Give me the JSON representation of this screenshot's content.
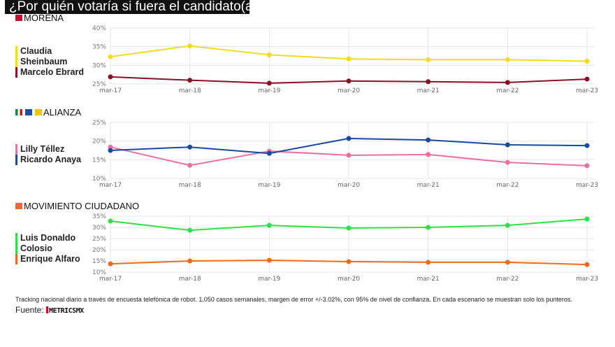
{
  "title": "¿Por quién votaría si fuera el candidato(a) de... ?",
  "note": "Tracking nacional diario a través de encuesta telefónica de robot. 1,050 casos semanales, margen de error +/-3.02%, con 95% de nivel de confianza. En cada escenario se muestran solo los punteros.",
  "source_label": "Fuente:",
  "source_brand": "METRICSMX",
  "chart_data": [
    {
      "type": "line",
      "title": "MORENA",
      "categories": [
        "mar-17",
        "mar-18",
        "mar-19",
        "mar-20",
        "mar-21",
        "mar-22",
        "mar-23"
      ],
      "ylim": [
        25,
        40
      ],
      "yticks": [
        25,
        30,
        35,
        40
      ],
      "ytick_labels": [
        "25%",
        "30%",
        "35%",
        "40%"
      ],
      "grid": true,
      "series": [
        {
          "name": "Claudia Sheinbaum",
          "legend_lines": [
            "Claudia",
            "Sheinbaum"
          ],
          "color": "#f2dc1e",
          "values": [
            32.3,
            35.2,
            32.8,
            31.7,
            31.5,
            31.5,
            31.1
          ]
        },
        {
          "name": "Marcelo Ebrard",
          "legend_lines": [
            "Marcelo Ebrard"
          ],
          "color": "#8a1028",
          "values": [
            26.9,
            26.0,
            25.2,
            25.8,
            25.6,
            25.4,
            26.3
          ]
        }
      ]
    },
    {
      "type": "line",
      "title": "ALIANZA",
      "categories": [
        "mar-17",
        "mar-18",
        "mar-19",
        "mar-20",
        "mar-21",
        "mar-22",
        "mar-23"
      ],
      "ylim": [
        10,
        25
      ],
      "yticks": [
        10,
        15,
        20,
        25
      ],
      "ytick_labels": [
        "10%",
        "15%",
        "20%",
        "25%"
      ],
      "grid": true,
      "series": [
        {
          "name": "Lilly Téllez",
          "legend_lines": [
            "Lilly Téllez"
          ],
          "color": "#e8719f",
          "values": [
            18.4,
            13.5,
            17.3,
            16.2,
            16.4,
            14.3,
            13.4
          ]
        },
        {
          "name": "Ricardo Anaya",
          "legend_lines": [
            "Ricardo Anaya"
          ],
          "color": "#1a4a9e",
          "values": [
            17.5,
            18.4,
            16.7,
            20.7,
            20.3,
            19.0,
            18.8
          ]
        }
      ]
    },
    {
      "type": "line",
      "title": "MOVIMIENTO CIUDADANO",
      "categories": [
        "mar-17",
        "mar-18",
        "mar-19",
        "mar-20",
        "mar-21",
        "mar-22",
        "mar-23"
      ],
      "ylim": [
        10,
        35
      ],
      "yticks": [
        10,
        15,
        20,
        25,
        30,
        35
      ],
      "ytick_labels": [
        "10%",
        "15%",
        "20%",
        "25%",
        "30%",
        "35%"
      ],
      "grid": true,
      "series": [
        {
          "name": "Luis Donaldo Colosio",
          "legend_lines": [
            "Luis Donaldo",
            "Colosio"
          ],
          "color": "#2ee04a",
          "values": [
            32.8,
            28.7,
            30.9,
            29.7,
            30.0,
            30.9,
            33.7
          ]
        },
        {
          "name": "Enrique Alfaro",
          "legend_lines": [
            "Enrique Alfaro"
          ],
          "color": "#f06a1c",
          "values": [
            13.7,
            15.0,
            15.3,
            14.7,
            14.4,
            14.4,
            13.4
          ]
        }
      ]
    }
  ]
}
